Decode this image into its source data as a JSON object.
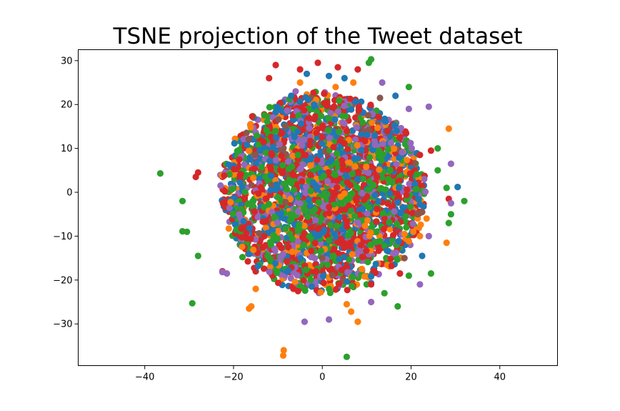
{
  "chart_data": {
    "type": "scatter",
    "title": "TSNE projection of the Tweet dataset",
    "xlabel": "",
    "ylabel": "",
    "xlim": [
      -55,
      53
    ],
    "ylim": [
      -39.5,
      32.5
    ],
    "xticks": [
      -40,
      -20,
      0,
      20,
      40
    ],
    "yticks": [
      -30,
      -20,
      -10,
      0,
      10,
      20,
      30
    ],
    "xtick_labels": [
      "−40",
      "−20",
      "0",
      "20",
      "40"
    ],
    "ytick_labels": [
      "−30",
      "−20",
      "−10",
      "0",
      "10",
      "20",
      "30"
    ],
    "grid": false,
    "legend": "none",
    "colors": [
      "#1f77b4",
      "#ff7f0e",
      "#2ca02c",
      "#d62728",
      "#9467bd",
      "#8c564b"
    ],
    "series": [
      {
        "color": "#2ca02c",
        "points": [
          [
            -36.5,
            4.3
          ],
          [
            -31.5,
            -2
          ],
          [
            -31.5,
            -8.9
          ],
          [
            -30.5,
            -9
          ],
          [
            -28,
            -14.5
          ],
          [
            -29.3,
            -25.3
          ],
          [
            5.5,
            -37.5
          ],
          [
            11,
            30.3
          ],
          [
            10.5,
            29.5
          ],
          [
            19.5,
            24
          ],
          [
            26,
            10
          ],
          [
            26,
            5
          ],
          [
            28,
            1
          ],
          [
            32,
            -2
          ],
          [
            28.5,
            -7
          ],
          [
            24.5,
            -18.5
          ],
          [
            17,
            -26
          ],
          [
            19.5,
            -19
          ],
          [
            14,
            -23
          ],
          [
            10,
            -21
          ],
          [
            29,
            -5
          ]
        ]
      },
      {
        "color": "#ff7f0e",
        "points": [
          [
            -8.7,
            -36
          ],
          [
            -8.8,
            -37.2
          ],
          [
            -16.5,
            -26.5
          ],
          [
            -16,
            -26
          ],
          [
            -15,
            -22
          ],
          [
            6.5,
            -27.2
          ],
          [
            8,
            -29.5
          ],
          [
            5.5,
            -25.5
          ],
          [
            28.5,
            14.5
          ],
          [
            21.5,
            -6
          ],
          [
            22,
            -10
          ],
          [
            18.5,
            -9.5
          ],
          [
            20.5,
            -9
          ],
          [
            23.5,
            -6
          ],
          [
            28,
            -11.5
          ],
          [
            -5,
            25
          ],
          [
            3,
            24
          ],
          [
            7,
            25
          ]
        ]
      },
      {
        "color": "#d62728",
        "points": [
          [
            -10.5,
            29
          ],
          [
            -5,
            28
          ],
          [
            -1,
            29.5
          ],
          [
            3.5,
            28.5
          ],
          [
            8,
            28
          ],
          [
            -22.5,
            -18
          ],
          [
            -28,
            4.5
          ],
          [
            -28.5,
            3.5
          ],
          [
            28.5,
            -1.5
          ],
          [
            17.5,
            -18.5
          ],
          [
            22,
            8.5
          ],
          [
            24.5,
            9.5
          ],
          [
            11,
            -21
          ],
          [
            -12,
            26
          ]
        ]
      },
      {
        "color": "#9467bd",
        "points": [
          [
            -21.5,
            -18.5
          ],
          [
            -22.5,
            -18.2
          ],
          [
            -4,
            -29.5
          ],
          [
            1.5,
            -29
          ],
          [
            11,
            -25
          ],
          [
            22,
            -21
          ],
          [
            24,
            19.5
          ],
          [
            19.5,
            19
          ],
          [
            29,
            6.5
          ],
          [
            29,
            -2.5
          ],
          [
            24,
            -10
          ],
          [
            -6,
            23
          ],
          [
            13.5,
            25
          ]
        ]
      },
      {
        "color": "#1f77b4",
        "points": [
          [
            -3.5,
            27
          ],
          [
            1.5,
            26.5
          ],
          [
            16.5,
            22
          ],
          [
            30.5,
            1.2
          ],
          [
            22.5,
            -14.5
          ],
          [
            -7,
            22
          ],
          [
            5,
            26
          ]
        ]
      },
      {
        "color": "#8c564b",
        "points": [
          [
            13,
            21.5
          ],
          [
            18.5,
            -15
          ],
          [
            21.5,
            -5
          ],
          [
            22.5,
            -4.5
          ]
        ]
      }
    ]
  }
}
